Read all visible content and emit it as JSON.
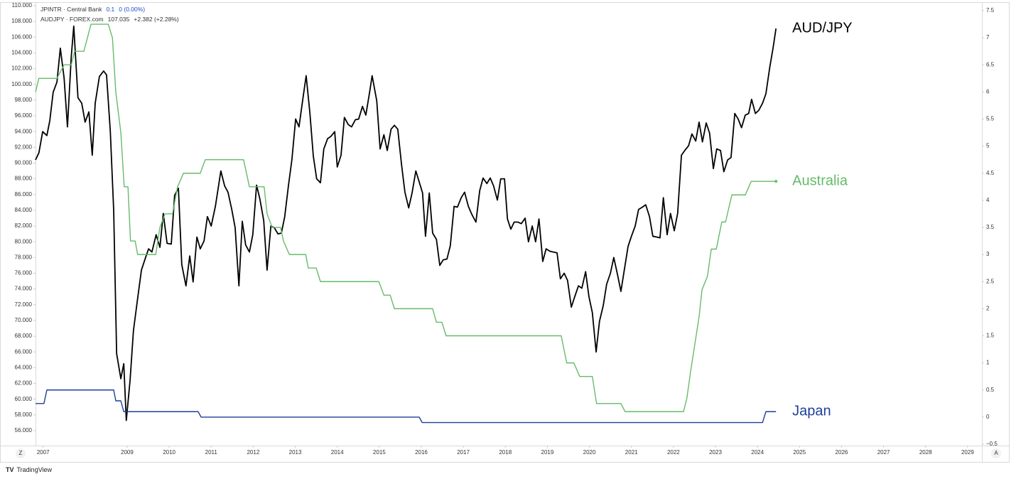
{
  "chart_data": {
    "type": "line",
    "header": [
      {
        "symbol": "JPINTR · Central Bank",
        "value": 0.1,
        "change": "0 (0.00%)"
      },
      {
        "symbol": "AUDJPY · FOREX.com",
        "value": 107.035,
        "change": "+2.382 (+2.28%)"
      }
    ],
    "xlim": [
      2006.82,
      2029.34
    ],
    "xticks": [
      2007,
      2009,
      2010,
      2011,
      2012,
      2013,
      2014,
      2015,
      2016,
      2017,
      2018,
      2019,
      2020,
      2021,
      2022,
      2023,
      2024,
      2025,
      2026,
      2027,
      2028,
      2029
    ],
    "ylim": [
      54.1,
      110.45
    ],
    "yticks": [
      {
        "value": 56,
        "label": "56.000"
      },
      {
        "value": 58,
        "label": "58.000"
      },
      {
        "value": 60,
        "label": "60.000"
      },
      {
        "value": 62,
        "label": "62.000"
      },
      {
        "value": 64,
        "label": "64.000"
      },
      {
        "value": 66,
        "label": "66.000"
      },
      {
        "value": 68,
        "label": "68.000"
      },
      {
        "value": 70,
        "label": "70.000"
      },
      {
        "value": 72,
        "label": "72.000"
      },
      {
        "value": 74,
        "label": "74.000"
      },
      {
        "value": 76,
        "label": "76.000"
      },
      {
        "value": 78,
        "label": "78.000"
      },
      {
        "value": 80,
        "label": "80.000"
      },
      {
        "value": 82,
        "label": "82.000"
      },
      {
        "value": 84,
        "label": "84.000"
      },
      {
        "value": 86,
        "label": "86.000"
      },
      {
        "value": 88,
        "label": "88.000"
      },
      {
        "value": 90,
        "label": "90.000"
      },
      {
        "value": 92,
        "label": "92.000"
      },
      {
        "value": 94,
        "label": "94.000"
      },
      {
        "value": 96,
        "label": "96.000"
      },
      {
        "value": 98,
        "label": "98.000"
      },
      {
        "value": 100,
        "label": "100.000"
      },
      {
        "value": 102,
        "label": "102.000"
      },
      {
        "value": 104,
        "label": "104.000"
      },
      {
        "value": 106,
        "label": "106.000"
      },
      {
        "value": 108,
        "label": "108.000"
      },
      {
        "value": 110,
        "label": "110.000"
      }
    ],
    "y2lim": [
      -0.526,
      7.657
    ],
    "y2ticks": [
      {
        "value": -0.5,
        "label": "−0.5"
      },
      0,
      0.5,
      1,
      1.5,
      2,
      2.5,
      3,
      3.5,
      4,
      4.5,
      5,
      5.5,
      6,
      6.5,
      7,
      7.5
    ],
    "series": [
      {
        "name": "AUD/JPY",
        "color": "#000000",
        "axis": "y",
        "x": [
          2006.82,
          2006.9,
          2006.99,
          2007.09,
          2007.16,
          2007.24,
          2007.33,
          2007.41,
          2007.5,
          2007.58,
          2007.67,
          2007.73,
          2007.83,
          2007.92,
          2008.0,
          2008.09,
          2008.17,
          2008.24,
          2008.34,
          2008.44,
          2008.51,
          2008.6,
          2008.68,
          2008.75,
          2008.85,
          2008.92,
          2008.98,
          2009.07,
          2009.15,
          2009.25,
          2009.34,
          2009.42,
          2009.51,
          2009.59,
          2009.69,
          2009.78,
          2009.86,
          2009.95,
          2010.05,
          2010.13,
          2010.22,
          2010.3,
          2010.4,
          2010.49,
          2010.57,
          2010.66,
          2010.74,
          2010.83,
          2010.91,
          2011.0,
          2011.1,
          2011.23,
          2011.32,
          2011.4,
          2011.49,
          2011.57,
          2011.66,
          2011.74,
          2011.82,
          2011.91,
          2011.99,
          2012.08,
          2012.16,
          2012.25,
          2012.33,
          2012.42,
          2012.5,
          2012.59,
          2012.67,
          2012.75,
          2012.84,
          2012.92,
          2013.01,
          2013.09,
          2013.18,
          2013.26,
          2013.35,
          2013.43,
          2013.51,
          2013.6,
          2013.68,
          2013.77,
          2013.85,
          2013.94,
          2014.0,
          2014.09,
          2014.17,
          2014.26,
          2014.34,
          2014.43,
          2014.51,
          2014.6,
          2014.68,
          2014.77,
          2014.83,
          2014.94,
          2015.02,
          2015.11,
          2015.19,
          2015.28,
          2015.36,
          2015.44,
          2015.53,
          2015.61,
          2015.7,
          2015.78,
          2015.87,
          2015.95,
          2016.03,
          2016.1,
          2016.19,
          2016.27,
          2016.36,
          2016.44,
          2016.52,
          2016.61,
          2016.69,
          2016.78,
          2016.86,
          2016.95,
          2017.03,
          2017.12,
          2017.2,
          2017.3,
          2017.39,
          2017.47,
          2017.56,
          2017.64,
          2017.72,
          2017.81,
          2017.89,
          2017.98,
          2018.05,
          2018.13,
          2018.21,
          2018.3,
          2018.38,
          2018.47,
          2018.55,
          2018.64,
          2018.72,
          2018.8,
          2018.89,
          2018.97,
          2019.06,
          2019.14,
          2019.23,
          2019.31,
          2019.4,
          2019.48,
          2019.57,
          2019.65,
          2019.74,
          2019.82,
          2019.91,
          2019.99,
          2020.07,
          2020.16,
          2020.24,
          2020.33,
          2020.41,
          2020.5,
          2020.58,
          2020.67,
          2020.75,
          2020.83,
          2020.92,
          2021.0,
          2021.09,
          2021.17,
          2021.26,
          2021.34,
          2021.43,
          2021.51,
          2021.6,
          2021.68,
          2021.76,
          2021.85,
          2021.93,
          2022.02,
          2022.1,
          2022.19,
          2022.27,
          2022.36,
          2022.44,
          2022.53,
          2022.61,
          2022.69,
          2022.78,
          2022.86,
          2022.95,
          2023.03,
          2023.12,
          2023.2,
          2023.29,
          2023.37,
          2023.46,
          2023.54,
          2023.62,
          2023.71,
          2023.79,
          2023.86,
          2023.95,
          2024.03,
          2024.12,
          2024.2,
          2024.29,
          2024.37,
          2024.44
        ],
        "values": [
          90.4,
          91.3,
          94,
          93.5,
          95.4,
          99,
          100.3,
          104.6,
          100.8,
          94.6,
          103.5,
          107.4,
          98.3,
          97.6,
          95.2,
          96.5,
          91,
          97.6,
          101,
          101.7,
          101.2,
          94,
          84,
          65.8,
          62.6,
          64.5,
          57.3,
          62.4,
          68.7,
          72.8,
          76.4,
          77.7,
          79.1,
          78.7,
          80.9,
          79.3,
          83.6,
          79.8,
          79.7,
          85.9,
          86.8,
          77.1,
          74.4,
          78.2,
          74.9,
          80.6,
          79.1,
          80.1,
          83.2,
          82,
          84.5,
          89,
          87.1,
          86.3,
          84.1,
          81.8,
          74.4,
          82.6,
          79.6,
          78.7,
          80.9,
          87.2,
          85.4,
          82.7,
          76.4,
          82,
          81.8,
          81,
          81.1,
          83.2,
          87.2,
          90.4,
          95.6,
          94.6,
          98.1,
          101.1,
          96.3,
          90.9,
          88,
          87.5,
          91.8,
          93.1,
          93.4,
          94,
          89.5,
          91,
          95.8,
          94.9,
          94.6,
          95.5,
          95.6,
          97.2,
          96.1,
          99,
          101.1,
          97.9,
          91.8,
          93.6,
          91.6,
          94.3,
          94.8,
          94.3,
          89.8,
          86.3,
          84.3,
          86.2,
          89,
          87.6,
          86.2,
          80.7,
          86.2,
          81.1,
          80.3,
          77,
          77.7,
          77.8,
          79.5,
          84.5,
          84.4,
          85.6,
          86.3,
          84.5,
          83.5,
          82.5,
          86.5,
          88.1,
          87.4,
          88.1,
          87.1,
          85.3,
          88,
          88,
          82.9,
          81.6,
          82.5,
          82.5,
          82.3,
          83,
          80,
          82,
          80,
          82.9,
          77.5,
          79.1,
          78.8,
          78.7,
          78.6,
          75.3,
          76,
          75.1,
          71.7,
          73,
          74.4,
          74.1,
          76.2,
          73,
          71,
          66,
          69.9,
          71.9,
          74.6,
          76,
          78,
          75.8,
          73.7,
          76.4,
          79.4,
          80.7,
          82,
          84.1,
          84.4,
          84.7,
          83.2,
          80.7,
          80.6,
          80.5,
          85.6,
          80.9,
          83.6,
          81.4,
          83.6,
          91,
          91.6,
          92.2,
          93.7,
          92.8,
          95.2,
          92.7,
          95.1,
          93.8,
          89.3,
          91.8,
          91.6,
          88.9,
          90.4,
          90.7,
          96.3,
          95.6,
          94.5,
          96.1,
          96.3,
          98.1,
          96.3,
          96.7,
          97.6,
          98.8,
          102.1,
          104.6,
          107.1
        ]
      },
      {
        "name": "Australia",
        "color": "#66bb6a",
        "axis": "y2",
        "x": [
          2006.82,
          2006.9,
          2007.33,
          2007.5,
          2007.67,
          2007.75,
          2007.97,
          2008.14,
          2008.55,
          2008.65,
          2008.73,
          2008.85,
          2008.93,
          2009.02,
          2009.08,
          2009.19,
          2009.25,
          2009.68,
          2009.78,
          2009.9,
          2010.08,
          2010.2,
          2010.34,
          2010.74,
          2010.86,
          2011.77,
          2011.91,
          2012.26,
          2012.33,
          2012.45,
          2012.65,
          2012.72,
          2012.86,
          2013.25,
          2013.31,
          2013.5,
          2013.6,
          2014.99,
          2015.11,
          2015.26,
          2015.36,
          2016.27,
          2016.36,
          2016.49,
          2016.59,
          2019.33,
          2019.46,
          2019.63,
          2019.77,
          2020.07,
          2020.17,
          2020.75,
          2020.85,
          2022.24,
          2022.32,
          2022.41,
          2022.51,
          2022.61,
          2022.68,
          2022.81,
          2022.9,
          2023.02,
          2023.15,
          2023.24,
          2023.39,
          2023.71,
          2023.85,
          2024.44
        ],
        "values": [
          6.0,
          6.25,
          6.25,
          6.5,
          6.5,
          6.75,
          6.75,
          7.25,
          7.25,
          7.0,
          6.0,
          5.25,
          4.25,
          4.25,
          3.25,
          3.25,
          3.0,
          3.0,
          3.5,
          3.75,
          3.75,
          4.25,
          4.5,
          4.5,
          4.75,
          4.75,
          4.25,
          4.25,
          3.75,
          3.5,
          3.5,
          3.25,
          3.0,
          3.0,
          2.75,
          2.75,
          2.5,
          2.5,
          2.25,
          2.25,
          2.0,
          2.0,
          1.75,
          1.75,
          1.5,
          1.5,
          1.0,
          1.0,
          0.75,
          0.75,
          0.25,
          0.25,
          0.1,
          0.1,
          0.35,
          0.85,
          1.35,
          1.85,
          2.35,
          2.6,
          3.1,
          3.1,
          3.6,
          3.6,
          4.1,
          4.1,
          4.35,
          4.35
        ]
      },
      {
        "name": "Japan",
        "color": "#1e3f9a",
        "axis": "y2",
        "x": [
          2006.82,
          2007.02,
          2007.09,
          2008.68,
          2008.73,
          2008.85,
          2008.92,
          2010.69,
          2010.76,
          2015.95,
          2016.02,
          2024.12,
          2024.2,
          2024.44
        ],
        "values": [
          0.25,
          0.25,
          0.5,
          0.5,
          0.3,
          0.3,
          0.1,
          0.1,
          0,
          0,
          -0.1,
          -0.1,
          0.1,
          0.1
        ]
      }
    ],
    "buttons": [
      "Z",
      "A"
    ],
    "brand": "TradingView"
  }
}
